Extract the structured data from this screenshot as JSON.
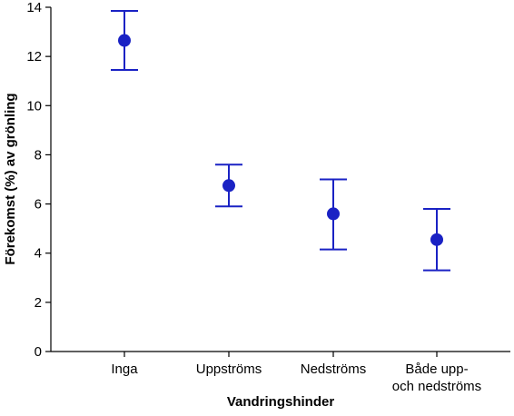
{
  "chart_data": {
    "type": "scatter",
    "title": "",
    "xlabel": "Vandringshinder",
    "ylabel": "Förekomst (%) av grönling",
    "ylim": [
      0,
      14
    ],
    "yticks": [
      0,
      2,
      4,
      6,
      8,
      10,
      12,
      14
    ],
    "grid": false,
    "legend": "none",
    "categories": [
      [
        "Inga"
      ],
      [
        "Uppströms"
      ],
      [
        "Nedströms"
      ],
      [
        "Både upp-",
        "och nedströms"
      ]
    ],
    "series": [
      {
        "values": [
          12.65,
          6.75,
          5.6,
          4.55
        ],
        "upper": [
          13.85,
          7.6,
          7.0,
          5.8
        ],
        "lower": [
          11.45,
          5.9,
          4.15,
          3.3
        ]
      }
    ],
    "colors": {
      "marker": "#1a22c4",
      "axis": "#000000"
    }
  }
}
